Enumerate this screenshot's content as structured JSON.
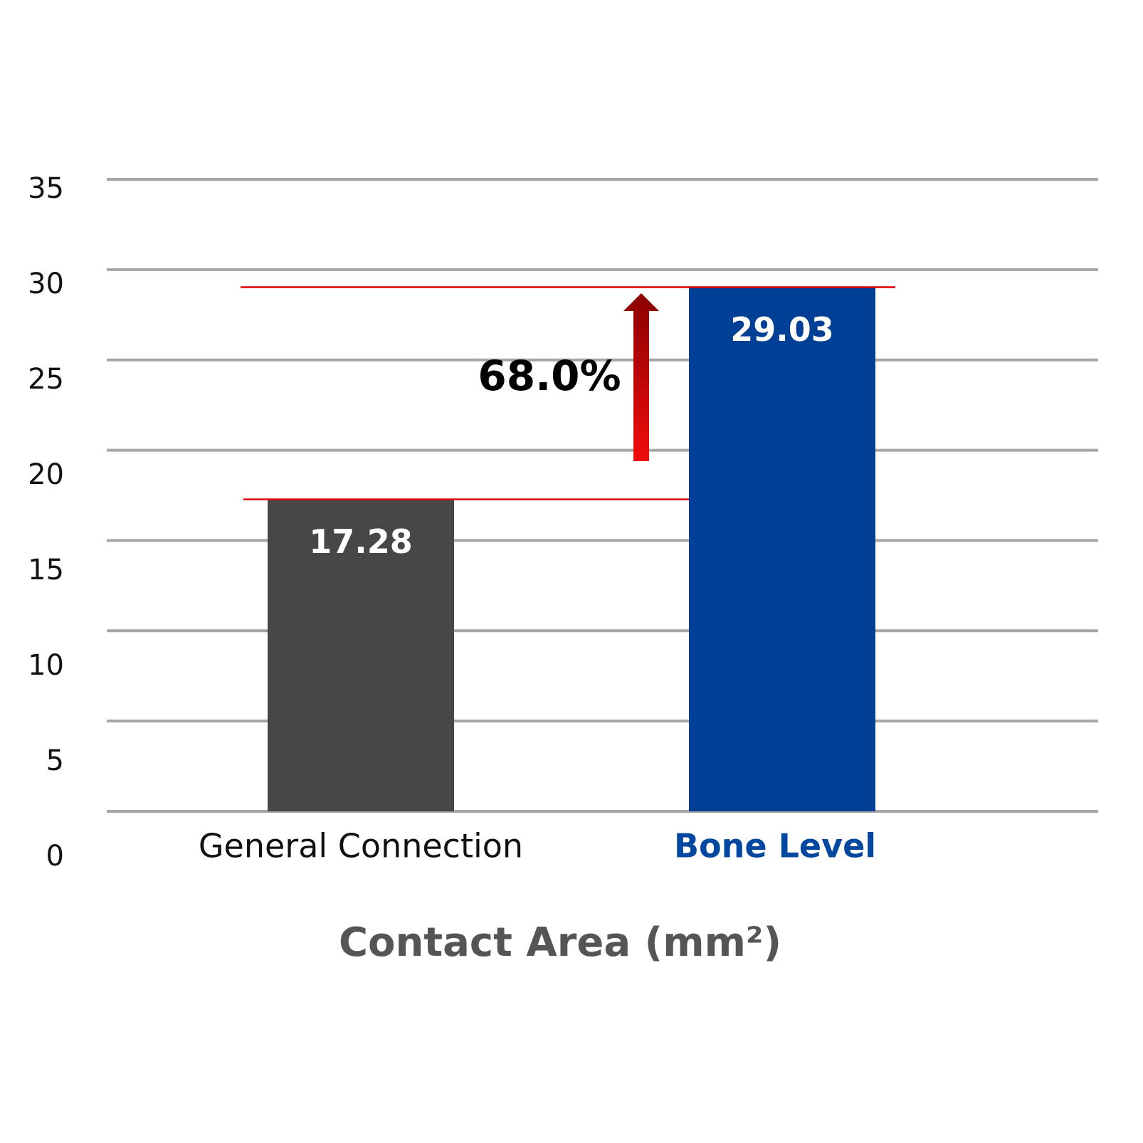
{
  "chart_data": {
    "type": "bar",
    "x_label": "Contact Area (mm²)",
    "categories": [
      "General Connection",
      "Bone Level"
    ],
    "values": [
      17.28,
      29.03
    ],
    "colors": [
      "#474747",
      "#003f96"
    ],
    "category_colors": [
      "#111111",
      "#0047a0"
    ],
    "ylim": [
      0,
      35
    ],
    "yticks": [
      0,
      5,
      10,
      15,
      20,
      25,
      30,
      35
    ],
    "grid": true,
    "annotation": "68.0%"
  }
}
